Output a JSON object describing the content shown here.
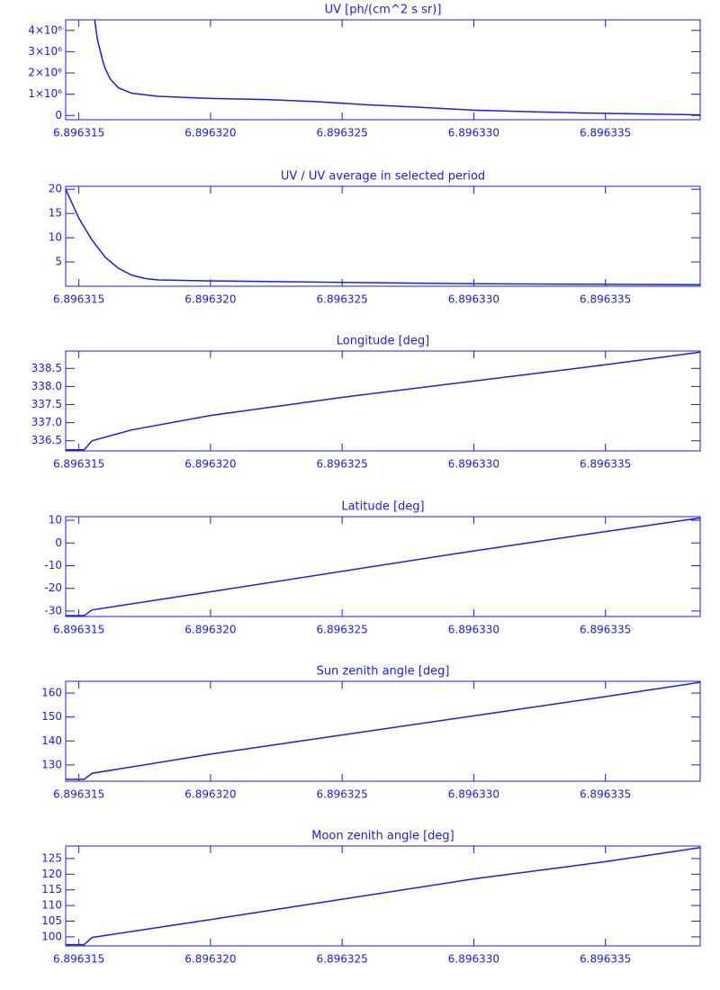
{
  "chart_data": [
    {
      "type": "line",
      "title": "UV [ph/(cm^2 s sr)]",
      "color": "#1a1aff",
      "x": [
        6.8963156,
        6.8963157,
        6.8963158,
        6.8963159,
        6.896316,
        6.8963162,
        6.8963165,
        6.896317,
        6.896318,
        6.89632,
        6.896322,
        6.896324,
        6.896326,
        6.896328,
        6.89633,
        6.896332,
        6.896334,
        6.896336,
        6.8963386
      ],
      "values": [
        4500000,
        3600000,
        3100000,
        2600000,
        2200000,
        1700000,
        1300000,
        1050000,
        900000,
        800000,
        750000,
        650000,
        500000,
        380000,
        250000,
        180000,
        120000,
        80000,
        30000
      ],
      "xlim": [
        6.8963145,
        6.8963386
      ],
      "xticks": [
        6.896315,
        {
          "value": 6.89632,
          "label": "6.896320"
        },
        6.896325,
        {
          "value": 6.89633,
          "label": "6.896330"
        },
        6.896335
      ],
      "ylim": [
        -200000,
        4500000
      ],
      "yticks": [
        0,
        {
          "value": 1000000,
          "label": "1×10⁶"
        },
        {
          "value": 2000000,
          "label": "2×10⁶"
        },
        {
          "value": 3000000,
          "label": "3×10⁶"
        },
        {
          "value": 4000000,
          "label": "4×10⁶"
        }
      ]
    },
    {
      "type": "line",
      "title": "UV / UV average in selected period",
      "color": "#1a1aff",
      "x": [
        6.8963145,
        6.896315,
        6.8963155,
        6.896316,
        6.8963165,
        6.896317,
        6.8963175,
        6.896318,
        6.89632,
        6.896325,
        6.89633,
        6.896335,
        6.8963386
      ],
      "values": [
        20,
        14,
        9.5,
        6,
        3.7,
        2.3,
        1.6,
        1.3,
        1.1,
        0.8,
        0.5,
        0.4,
        0.3
      ],
      "xlim": [
        6.8963145,
        6.8963386
      ],
      "xticks": [
        6.896315,
        {
          "value": 6.89632,
          "label": "6.896320"
        },
        6.896325,
        {
          "value": 6.89633,
          "label": "6.896330"
        },
        6.896335
      ],
      "ylim": [
        0,
        20.6
      ],
      "yticks": [
        5,
        10,
        15,
        20
      ]
    },
    {
      "type": "line",
      "title": "Longitude [deg]",
      "color": "#1a1aff",
      "x": [
        6.8963145,
        6.8963152,
        6.8963155,
        6.896317,
        6.89632,
        6.896325,
        6.89633,
        6.896335,
        6.8963386
      ],
      "values": [
        336.25,
        336.25,
        336.5,
        336.8,
        337.2,
        337.7,
        338.15,
        338.6,
        338.95
      ],
      "xlim": [
        6.8963145,
        6.8963386
      ],
      "xticks": [
        6.896315,
        {
          "value": 6.89632,
          "label": "6.896320"
        },
        6.896325,
        {
          "value": 6.89633,
          "label": "6.896330"
        },
        6.896335
      ],
      "ylim": [
        336.22,
        338.98
      ],
      "yticks": [
        336.5,
        {
          "value": 337,
          "label": "337.0"
        },
        337.5,
        {
          "value": 338,
          "label": "338.0"
        },
        338.5
      ]
    },
    {
      "type": "line",
      "title": "Latitude [deg]",
      "color": "#1a1aff",
      "x": [
        6.8963145,
        6.8963152,
        6.8963155,
        6.89632,
        6.896325,
        6.89633,
        6.896335,
        6.8963386
      ],
      "values": [
        -32,
        -32,
        -29.5,
        -21.5,
        -12.5,
        -3.5,
        5,
        11
      ],
      "xlim": [
        6.8963145,
        6.8963386
      ],
      "xticks": [
        6.896315,
        {
          "value": 6.89632,
          "label": "6.896320"
        },
        6.896325,
        {
          "value": 6.89633,
          "label": "6.896330"
        },
        6.896335
      ],
      "ylim": [
        -32.4,
        11.6
      ],
      "yticks": [
        -30,
        -20,
        -10,
        0,
        10
      ]
    },
    {
      "type": "line",
      "title": "Sun zenith angle [deg]",
      "color": "#1a1aff",
      "x": [
        6.8963145,
        6.8963152,
        6.8963155,
        6.89632,
        6.896325,
        6.89633,
        6.896335,
        6.8963386
      ],
      "values": [
        124,
        124,
        126.5,
        134.5,
        142.5,
        150.5,
        158.5,
        164.5
      ],
      "xlim": [
        6.8963145,
        6.8963386
      ],
      "xticks": [
        6.896315,
        {
          "value": 6.89632,
          "label": "6.896320"
        },
        6.896325,
        {
          "value": 6.89633,
          "label": "6.896330"
        },
        6.896335
      ],
      "ylim": [
        123.2,
        164.9
      ],
      "yticks": [
        130,
        140,
        150,
        160
      ]
    },
    {
      "type": "line",
      "title": "Moon zenith angle [deg]",
      "color": "#1a1aff",
      "x": [
        6.8963145,
        6.8963152,
        6.8963155,
        6.89632,
        6.896325,
        6.89633,
        6.896335,
        6.8963386
      ],
      "values": [
        97.5,
        97.5,
        99.8,
        105.5,
        112,
        118.5,
        124,
        128.5
      ],
      "xlim": [
        6.8963145,
        6.8963386
      ],
      "xticks": [
        6.896315,
        {
          "value": 6.89632,
          "label": "6.896320"
        },
        6.896325,
        {
          "value": 6.89633,
          "label": "6.896330"
        },
        6.896335
      ],
      "ylim": [
        97.1,
        129
      ],
      "yticks": [
        100,
        105,
        110,
        115,
        120,
        125
      ]
    }
  ]
}
